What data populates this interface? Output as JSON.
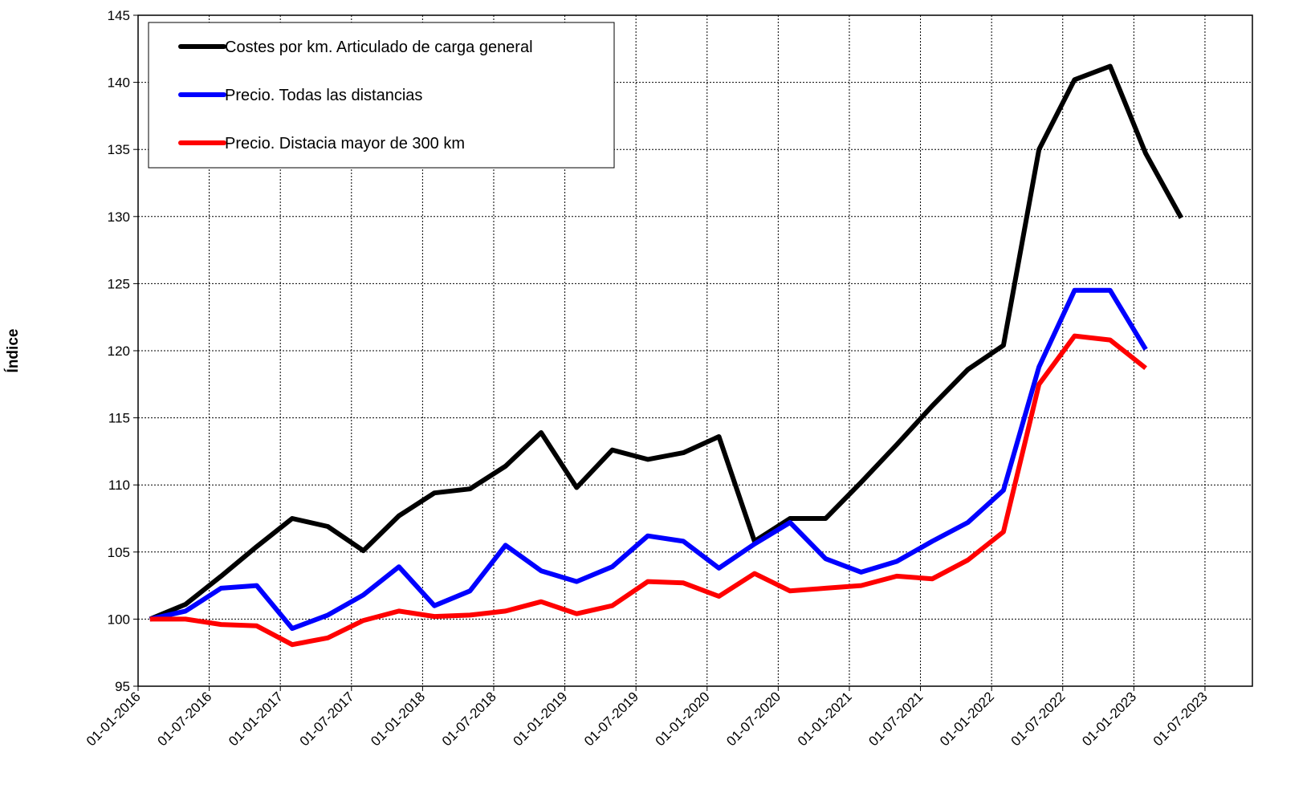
{
  "chart_data": {
    "type": "line",
    "y_label": "Índice",
    "x": [
      "01-02-2016",
      "01-05-2016",
      "01-08-2016",
      "01-11-2016",
      "01-02-2017",
      "01-05-2017",
      "01-08-2017",
      "01-11-2017",
      "01-02-2018",
      "01-05-2018",
      "01-08-2018",
      "01-11-2018",
      "01-02-2019",
      "01-05-2019",
      "01-08-2019",
      "01-11-2019",
      "01-02-2020",
      "01-05-2020",
      "01-08-2020",
      "01-11-2020",
      "01-02-2021",
      "01-05-2021",
      "01-08-2021",
      "01-11-2021",
      "01-02-2022",
      "01-05-2022",
      "01-08-2022",
      "01-11-2022",
      "01-02-2023",
      "01-05-2023"
    ],
    "series": [
      {
        "name": "Costes por km. Articulado de carga general",
        "color": "#000000",
        "values": [
          100,
          101.1,
          103.2,
          105.4,
          107.5,
          106.9,
          105.1,
          107.7,
          109.4,
          109.7,
          111.4,
          113.9,
          109.8,
          112.6,
          111.9,
          112.4,
          113.6,
          105.8,
          107.5,
          107.5,
          110.2,
          113.0,
          115.9,
          118.6,
          120.4,
          135.0,
          140.2,
          141.2,
          134.7,
          129.9
        ]
      },
      {
        "name": "Precio. Todas las distancias",
        "color": "#0000ff",
        "values": [
          100,
          100.6,
          102.3,
          102.5,
          99.3,
          100.3,
          101.8,
          103.9,
          101.0,
          102.1,
          105.5,
          103.6,
          102.8,
          103.9,
          106.2,
          105.8,
          103.8,
          105.6,
          107.2,
          104.5,
          103.5,
          104.3,
          105.8,
          107.2,
          109.6,
          118.8,
          124.5,
          124.5,
          120.1,
          null
        ]
      },
      {
        "name": "Precio. Distacia mayor de 300 km",
        "color": "#ff0000",
        "values": [
          100,
          100.0,
          99.6,
          99.5,
          98.1,
          98.6,
          99.9,
          100.6,
          100.2,
          100.3,
          100.6,
          101.3,
          100.4,
          101.0,
          102.8,
          102.7,
          101.7,
          103.4,
          102.1,
          102.3,
          102.5,
          103.2,
          103.0,
          104.4,
          106.5,
          117.5,
          121.1,
          120.8,
          118.7,
          null
        ]
      }
    ],
    "xlim": [
      "01-01-2016",
      "01-11-2023"
    ],
    "xticks": [
      "01-01-2016",
      "01-07-2016",
      "01-01-2017",
      "01-07-2017",
      "01-01-2018",
      "01-07-2018",
      "01-01-2019",
      "01-07-2019",
      "01-01-2020",
      "01-07-2020",
      "01-01-2021",
      "01-07-2021",
      "01-01-2022",
      "01-07-2022",
      "01-01-2023",
      "01-07-2023"
    ],
    "ylim": [
      95,
      145
    ],
    "yticks": [
      95,
      100,
      105,
      110,
      115,
      120,
      125,
      130,
      135,
      140,
      145
    ],
    "grid": true,
    "legend": "upper left"
  }
}
